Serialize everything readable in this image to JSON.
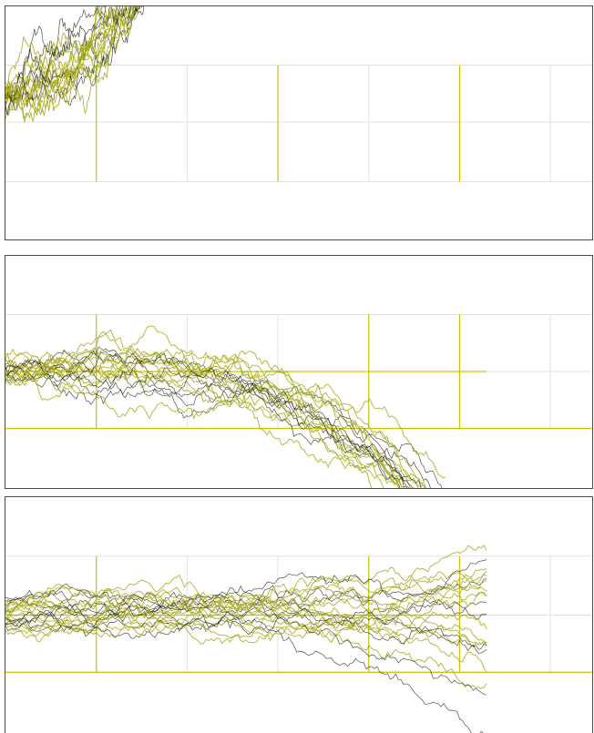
{
  "chart_data": [
    {
      "type": "line",
      "description_style": "random-walk ensemble",
      "title": "",
      "xlabel": "",
      "ylabel": "",
      "grid": true,
      "colors": {
        "walk": "#a8ab1c",
        "walk_dark": "#1a1a08",
        "guide": "#c9c600",
        "grid": "#e2e2e2"
      },
      "series_count": 18,
      "trend": "upward-exponential",
      "start": 0.0,
      "end": 3.2,
      "length": 0.37,
      "noise": 0.055,
      "seed": 11,
      "spread": 0.18
    },
    {
      "type": "line",
      "description_style": "random-walk ensemble",
      "title": "",
      "xlabel": "",
      "ylabel": "",
      "grid": true,
      "colors": {
        "walk": "#a8ab1c",
        "walk_dark": "#1a1a08",
        "guide": "#c9c600",
        "grid": "#e2e2e2"
      },
      "series_count": 20,
      "trend": "downward-accelerating",
      "start": 0.0,
      "end": -2.6,
      "length": 0.75,
      "noise": 0.05,
      "seed": 23,
      "spread": 0.22
    },
    {
      "type": "line",
      "description_style": "random-walk ensemble",
      "title": "",
      "xlabel": "",
      "ylabel": "",
      "grid": true,
      "colors": {
        "walk": "#a8ab1c",
        "walk_dark": "#1a1a08",
        "guide": "#c9c600",
        "grid": "#e2e2e2"
      },
      "series_count": 22,
      "trend": "diverging-fan",
      "start": 0.0,
      "end": 0.0,
      "length": 0.82,
      "noise": 0.045,
      "seed": 37,
      "spread": 0.25
    }
  ]
}
